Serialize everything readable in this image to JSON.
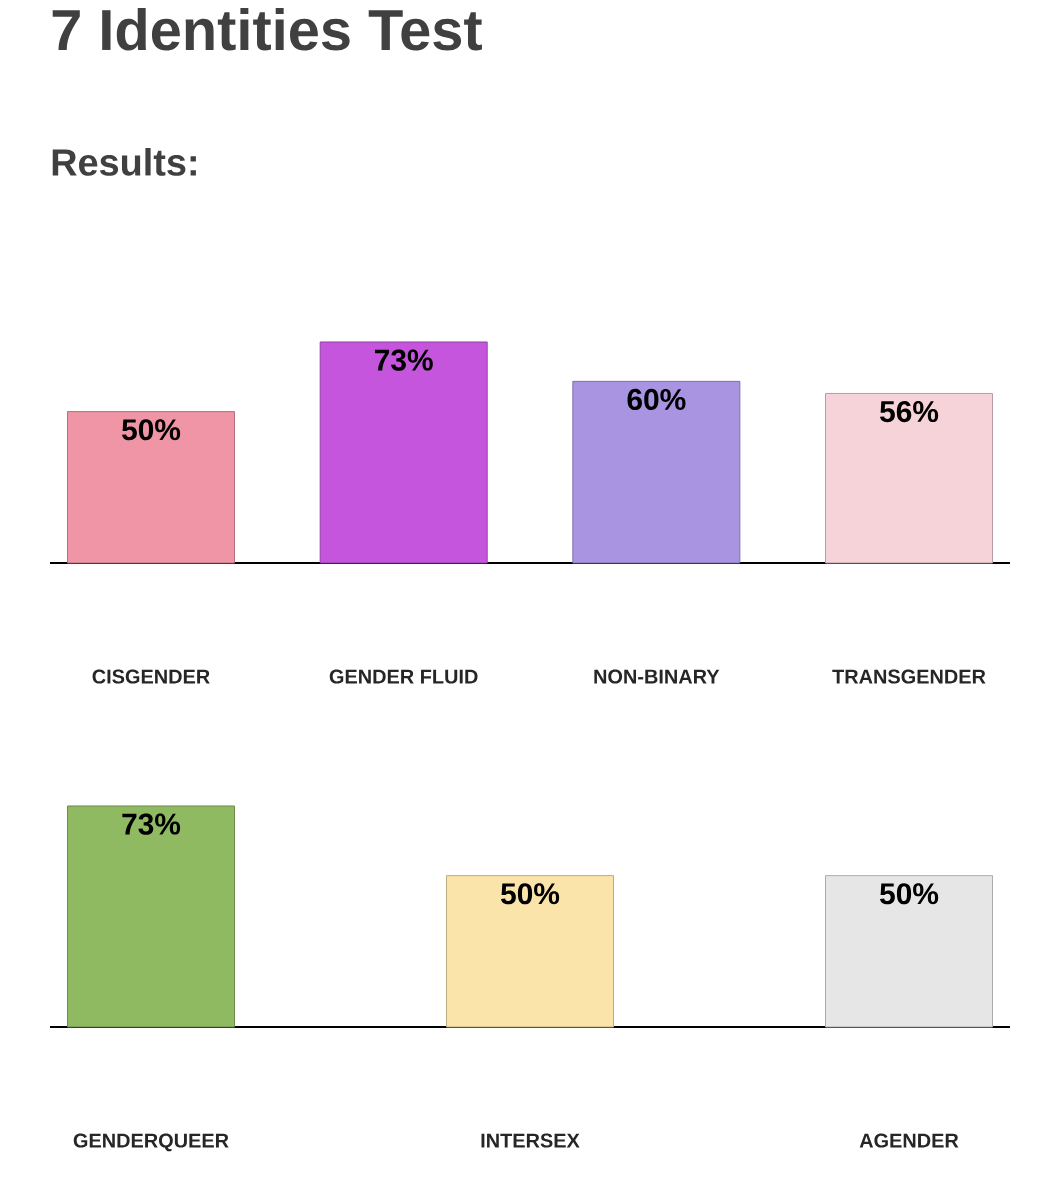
{
  "chart_data": [
    {
      "type": "bar",
      "title": "7 Identities Test",
      "subtitle": "Results:",
      "categories": [
        "CISGENDER",
        "GENDER FLUID",
        "NON-BINARY",
        "TRANSGENDER"
      ],
      "values": [
        50,
        73,
        60,
        56
      ],
      "value_labels": [
        "50%",
        "73%",
        "60%",
        "56%"
      ],
      "colors": [
        "#f095a5",
        "#c455dc",
        "#a994e2",
        "#f6d3d8"
      ],
      "tick_labels": "x"
    },
    {
      "type": "bar",
      "categories": [
        "GENDERQUEER",
        "INTERSEX",
        "AGENDER"
      ],
      "values": [
        73,
        50,
        50
      ],
      "value_labels": [
        "73%",
        "50%",
        "50%"
      ],
      "colors": [
        "#8fba62",
        "#fbe4a9",
        "#e6e6e6"
      ],
      "tick_labels": "x"
    }
  ]
}
